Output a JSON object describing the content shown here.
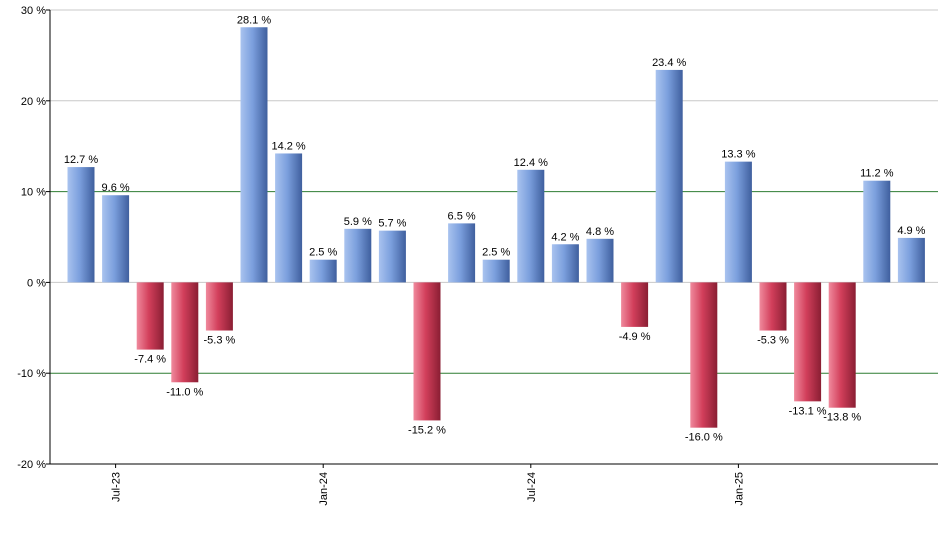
{
  "chart_data": {
    "type": "bar",
    "title": "",
    "xlabel": "",
    "ylabel": "",
    "ylim": [
      -20,
      30
    ],
    "yticks": [
      30,
      20,
      10,
      0,
      -10,
      -20
    ],
    "ytick_labels": [
      "30 %",
      "20 %",
      "10 %",
      "0 %",
      "-10 %",
      "-20 %"
    ],
    "values": [
      12.7,
      9.6,
      -7.4,
      -11.0,
      -5.3,
      28.1,
      14.2,
      2.5,
      5.9,
      5.7,
      -15.2,
      6.5,
      2.5,
      12.4,
      4.2,
      4.8,
      -4.9,
      23.4,
      -16.0,
      13.3,
      -5.3,
      -13.1,
      -13.8,
      11.2,
      4.9
    ],
    "data_labels": [
      "12.7 %",
      "9.6 %",
      "-7.4 %",
      "-11.0 %",
      "-5.3 %",
      "28.1 %",
      "14.2 %",
      "2.5 %",
      "5.9 %",
      "5.7 %",
      "-15.2 %",
      "6.5 %",
      "2.5 %",
      "12.4 %",
      "4.2 %",
      "4.8 %",
      "-4.9 %",
      "23.4 %",
      "-16.0 %",
      "13.3 %",
      "-5.3 %",
      "-13.1 %",
      "-13.8 %",
      "11.2 %",
      "4.9 %"
    ],
    "xtick_labels": [
      {
        "bar_index": 1,
        "label": "Jul-23"
      },
      {
        "bar_index": 7,
        "label": "Jan-24"
      },
      {
        "bar_index": 13,
        "label": "Jul-24"
      },
      {
        "bar_index": 19,
        "label": "Jan-25"
      }
    ],
    "grid": true,
    "green_lines": [
      10,
      -10
    ],
    "colors": {
      "positive": "#6f95d6",
      "negative": "#c9334f",
      "grid": "#c8c8c8",
      "green_line": "#2e7d32",
      "axis": "#000000"
    }
  }
}
